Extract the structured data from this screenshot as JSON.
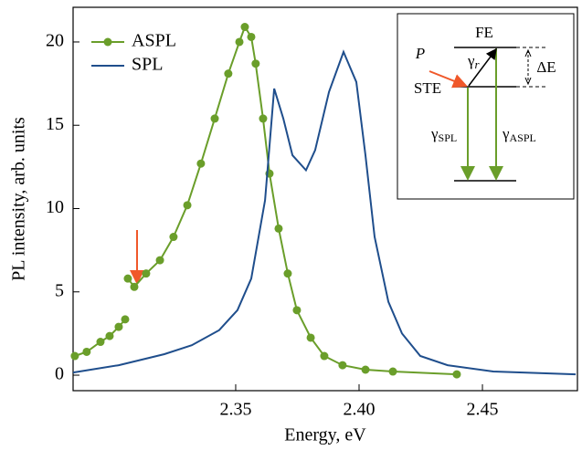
{
  "chart_data": {
    "type": "line",
    "xlabel": "Energy, eV",
    "ylabel": "PL intensity, arb. units",
    "xlim": [
      2.2841,
      2.4885
    ],
    "ylim": [
      -0.93,
      22.08
    ],
    "xticks": [
      2.35,
      {
        "value": 2.4,
        "label": "2.40"
      },
      2.45
    ],
    "yticks": [
      0,
      5,
      10,
      15,
      20
    ],
    "legend": "upper left",
    "series": [
      {
        "name": "ASPL",
        "color": "#6a9e2a",
        "marker": true,
        "x": [
          2.2848,
          2.2896,
          2.2952,
          2.2989,
          2.3026,
          2.3052,
          2.3058,
          2.3063,
          2.3089,
          2.3137,
          2.3193,
          2.3248,
          2.3304,
          2.3359,
          2.3415,
          2.347,
          2.3515,
          2.3537,
          2.3563,
          2.3581,
          2.3611,
          2.3637,
          2.3674,
          2.3711,
          2.3748,
          2.3804,
          2.3859,
          2.3933,
          2.4026,
          2.4137,
          2.4396
        ],
        "values": [
          1.15,
          1.4,
          2.0,
          2.35,
          2.9,
          3.35,
          null,
          5.8,
          5.3,
          6.1,
          6.9,
          8.3,
          10.2,
          12.7,
          15.4,
          18.1,
          20.0,
          20.9,
          20.3,
          18.7,
          15.4,
          12.1,
          8.8,
          6.1,
          3.9,
          2.25,
          1.15,
          0.6,
          0.33,
          0.22,
          0.05
        ]
      },
      {
        "name": "SPL",
        "color": "#1f4e8c",
        "marker": false,
        "x": [
          2.2841,
          2.3026,
          2.3211,
          2.3322,
          2.3433,
          2.3507,
          2.3563,
          2.3619,
          2.3656,
          2.3693,
          2.373,
          2.3785,
          2.3822,
          2.3878,
          2.3937,
          2.3989,
          2.4026,
          2.4063,
          2.4119,
          2.4174,
          2.4248,
          2.4359,
          2.4544,
          2.4878
        ],
        "values": [
          0.16,
          0.6,
          1.26,
          1.8,
          2.7,
          3.9,
          5.8,
          10.5,
          17.2,
          15.4,
          13.2,
          12.3,
          13.5,
          17.0,
          19.4,
          17.6,
          13.2,
          8.3,
          4.4,
          2.5,
          1.15,
          0.6,
          0.22,
          0.05
        ]
      }
    ],
    "inset": {
      "fe": "FE",
      "ste": "STE",
      "p": "P",
      "delta_e": "ΔE",
      "gamma_r": {
        "base": "γ",
        "sub": "r"
      },
      "gamma_spl": {
        "base": "γ",
        "sub": "SPL"
      },
      "gamma_aspl": {
        "base": "γ",
        "sub": "ASPL"
      }
    }
  }
}
